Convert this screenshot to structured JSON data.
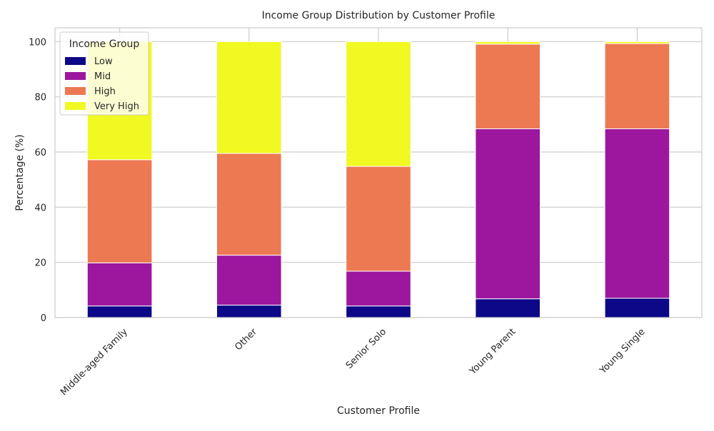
{
  "chart_data": {
    "type": "bar",
    "stacked": true,
    "title": "Income Group Distribution by Customer Profile",
    "xlabel": "Customer Profile",
    "ylabel": "Percentage (%)",
    "ylim": [
      0,
      105
    ],
    "yticks": [
      0,
      20,
      40,
      60,
      80,
      100
    ],
    "grid": true,
    "legend_title": "Income Group",
    "legend_position": "top-left",
    "categories": [
      "Middle-aged Family",
      "Other",
      "Senior Solo",
      "Young Parent",
      "Young Single"
    ],
    "series": [
      {
        "name": "Low",
        "color": "#0d0887",
        "values": [
          4.2,
          4.5,
          4.2,
          6.8,
          7.0
        ]
      },
      {
        "name": "Mid",
        "color": "#9c179e",
        "values": [
          15.6,
          18.1,
          12.6,
          61.6,
          61.4
        ]
      },
      {
        "name": "High",
        "color": "#ed7953",
        "values": [
          37.4,
          36.9,
          38.0,
          30.7,
          30.9
        ]
      },
      {
        "name": "Very High",
        "color": "#f0f921",
        "values": [
          42.8,
          40.5,
          45.2,
          0.9,
          0.7
        ]
      }
    ]
  }
}
